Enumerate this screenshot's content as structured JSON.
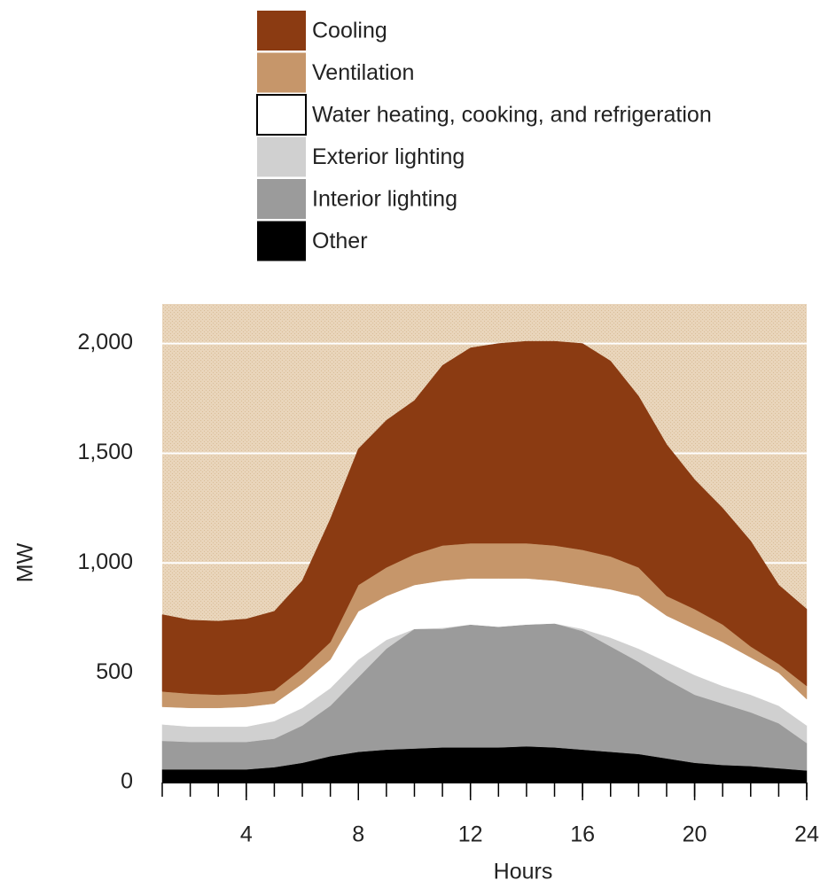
{
  "chart_data": {
    "type": "stacked-area",
    "x": [
      1,
      2,
      3,
      4,
      5,
      6,
      7,
      8,
      9,
      10,
      11,
      12,
      13,
      14,
      15,
      16,
      17,
      18,
      19,
      20,
      21,
      22,
      23,
      24
    ],
    "series": [
      {
        "name": "Other",
        "color": "#000000",
        "values": [
          60,
          60,
          60,
          60,
          70,
          90,
          120,
          140,
          150,
          155,
          160,
          160,
          160,
          165,
          160,
          150,
          140,
          130,
          110,
          90,
          80,
          75,
          65,
          55
        ]
      },
      {
        "name": "Interior lighting",
        "color": "#9b9b9b",
        "values": [
          130,
          125,
          125,
          125,
          130,
          170,
          230,
          340,
          460,
          545,
          540,
          560,
          550,
          555,
          565,
          540,
          480,
          420,
          360,
          310,
          280,
          245,
          205,
          125
        ]
      },
      {
        "name": "Exterior lighting",
        "color": "#d0d0d0",
        "values": [
          75,
          70,
          70,
          70,
          80,
          80,
          80,
          80,
          40,
          0,
          5,
          0,
          0,
          0,
          0,
          10,
          40,
          60,
          80,
          90,
          80,
          80,
          80,
          80
        ]
      },
      {
        "name": "Water heating, cooking, and refrigeration",
        "color": "#ffffff",
        "values": [
          80,
          85,
          85,
          90,
          80,
          110,
          130,
          220,
          200,
          200,
          215,
          210,
          220,
          210,
          195,
          200,
          220,
          240,
          210,
          210,
          200,
          170,
          150,
          120
        ]
      },
      {
        "name": "Ventilation",
        "color": "#c6966a",
        "values": [
          70,
          65,
          60,
          60,
          60,
          70,
          80,
          120,
          130,
          140,
          160,
          160,
          160,
          160,
          160,
          160,
          150,
          130,
          90,
          90,
          80,
          50,
          40,
          60
        ]
      },
      {
        "name": "Cooling",
        "color": "#8b3b12",
        "values": [
          350,
          335,
          335,
          340,
          360,
          400,
          560,
          620,
          670,
          700,
          820,
          890,
          910,
          920,
          930,
          940,
          890,
          780,
          690,
          590,
          530,
          480,
          360,
          350
        ]
      }
    ],
    "xlabel": "Hours",
    "ylabel": "MW",
    "xlim": [
      1,
      24
    ],
    "xticks": [
      4,
      8,
      12,
      16,
      20,
      24
    ],
    "xticks_minor": [
      1,
      2,
      3,
      4,
      5,
      6,
      7,
      8,
      9,
      10,
      11,
      12,
      13,
      14,
      15,
      16,
      17,
      18,
      19,
      20,
      21,
      22,
      23,
      24
    ],
    "ylim": [
      0,
      2180
    ],
    "yticks": [
      0,
      500,
      {
        "value": 1000,
        "label": "1,000"
      },
      {
        "value": 1500,
        "label": "1,500"
      },
      {
        "value": 2000,
        "label": "2,000"
      }
    ],
    "grid": true,
    "grid_color": "#ffffff",
    "plot_background": "#e9d5bb",
    "legend": "top"
  }
}
